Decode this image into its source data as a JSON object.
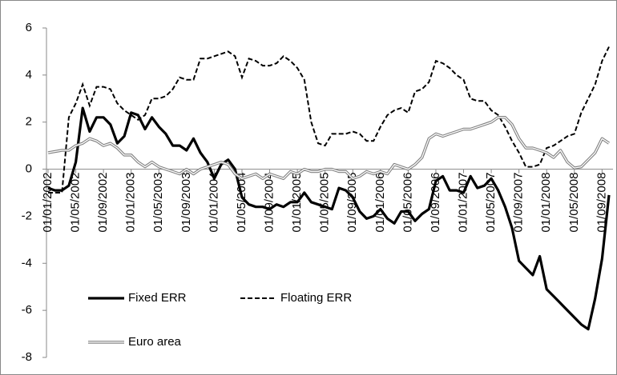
{
  "chart_data": {
    "type": "line",
    "categories": [
      "01/01/2002",
      null,
      null,
      null,
      "01/05/2002",
      null,
      null,
      null,
      "01/09/2002",
      null,
      null,
      null,
      "01/01/2003",
      null,
      null,
      null,
      "01/05/2003",
      null,
      null,
      null,
      "01/09/2003",
      null,
      null,
      null,
      "01/01/2004",
      null,
      null,
      null,
      "01/05/2004",
      null,
      null,
      null,
      "01/09/2004",
      null,
      null,
      null,
      "01/01/2005",
      null,
      null,
      null,
      "01/05/2005",
      null,
      null,
      null,
      "01/09/2005",
      null,
      null,
      null,
      "01/01/2006",
      null,
      null,
      null,
      "01/05/2006",
      null,
      null,
      null,
      "01/09/2006",
      null,
      null,
      null,
      "01/01/2007",
      null,
      null,
      null,
      "01/05/2007",
      null,
      null,
      null,
      "01/09/2007",
      null,
      null,
      null,
      "01/01/2008",
      null,
      null,
      null,
      "01/05/2008",
      null,
      null,
      null,
      "01/09/2008",
      null
    ],
    "series": [
      {
        "name": "Fixed ERR",
        "color": "#000000",
        "line_style": "solid",
        "values": [
          -0.8,
          -0.9,
          -0.9,
          -0.7,
          0.3,
          2.6,
          1.6,
          2.2,
          2.2,
          1.9,
          1.1,
          1.4,
          2.4,
          2.3,
          1.7,
          2.2,
          1.8,
          1.5,
          1.0,
          1.0,
          0.8,
          1.3,
          0.7,
          0.3,
          -0.4,
          0.2,
          0.4,
          0.0,
          -1.2,
          -1.5,
          -1.6,
          -1.6,
          -1.7,
          -1.5,
          -1.6,
          -1.4,
          -1.4,
          -1.0,
          -1.4,
          -1.5,
          -1.6,
          -1.7,
          -0.8,
          -0.9,
          -1.2,
          -1.8,
          -2.1,
          -2.0,
          -1.7,
          -2.1,
          -2.3,
          -1.8,
          -1.8,
          -2.2,
          -1.9,
          -1.7,
          -0.5,
          -0.3,
          -0.9,
          -0.9,
          -1.0,
          -0.3,
          -0.8,
          -0.7,
          -0.4,
          -0.9,
          -1.6,
          -2.5,
          -3.9,
          -4.2,
          -4.5,
          -3.7,
          -5.1,
          -5.4,
          -5.7,
          -6.0,
          -6.3,
          -6.6,
          -6.8,
          -5.5,
          -3.8,
          -1.1
        ]
      },
      {
        "name": "Floating ERR",
        "color": "#000000",
        "line_style": "dashed",
        "values": [
          -1.0,
          -1.0,
          -1.0,
          2.2,
          2.8,
          3.6,
          2.7,
          3.5,
          3.5,
          3.4,
          2.8,
          2.5,
          2.3,
          2.1,
          2.3,
          3.0,
          3.0,
          3.1,
          3.4,
          3.9,
          3.8,
          3.8,
          4.7,
          4.7,
          4.8,
          4.9,
          5.0,
          4.8,
          3.9,
          4.7,
          4.6,
          4.4,
          4.4,
          4.5,
          4.8,
          4.6,
          4.3,
          3.8,
          2.0,
          1.1,
          1.0,
          1.5,
          1.5,
          1.5,
          1.6,
          1.5,
          1.2,
          1.2,
          1.8,
          2.3,
          2.5,
          2.6,
          2.4,
          3.3,
          3.4,
          3.7,
          4.6,
          4.5,
          4.3,
          4.0,
          3.8,
          3.0,
          2.9,
          2.9,
          2.5,
          2.3,
          1.8,
          1.2,
          0.7,
          0.1,
          0.1,
          0.2,
          0.9,
          1.0,
          1.2,
          1.4,
          1.5,
          2.4,
          3.0,
          3.6,
          4.6,
          5.2
        ]
      },
      {
        "name": "Euro area",
        "color": "#808080",
        "line_style": "double",
        "values": [
          0.7,
          0.75,
          0.8,
          0.8,
          1.0,
          1.1,
          1.3,
          1.2,
          1.0,
          1.1,
          0.9,
          0.6,
          0.6,
          0.3,
          0.1,
          0.3,
          0.1,
          0.0,
          -0.1,
          -0.2,
          0.0,
          -0.2,
          0.0,
          0.1,
          0.2,
          0.3,
          0.2,
          -0.2,
          -0.4,
          -0.3,
          -0.2,
          -0.4,
          -0.2,
          -0.3,
          -0.4,
          -0.1,
          -0.2,
          0.0,
          -0.1,
          -0.1,
          0.0,
          0.0,
          -0.1,
          -0.1,
          -0.4,
          -0.3,
          -0.1,
          -0.2,
          -0.1,
          -0.2,
          0.2,
          0.1,
          0.0,
          0.2,
          0.5,
          1.3,
          1.5,
          1.4,
          1.5,
          1.6,
          1.7,
          1.7,
          1.8,
          1.9,
          2.0,
          2.2,
          2.2,
          1.9,
          1.3,
          0.9,
          0.9,
          0.8,
          0.7,
          0.5,
          0.8,
          0.3,
          0.05,
          0.1,
          0.4,
          0.7,
          1.3,
          1.1
        ]
      }
    ],
    "ylim": [
      -8,
      6
    ],
    "yticks": [
      -8,
      -6,
      -4,
      -2,
      0,
      2,
      4,
      6
    ],
    "grid": false,
    "legend": "lower left"
  }
}
